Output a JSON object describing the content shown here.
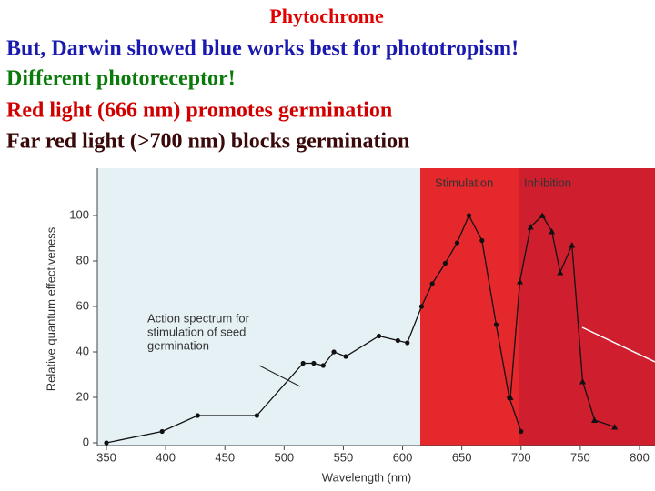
{
  "slide": {
    "lines": [
      {
        "text": "Phytochrome",
        "color": "#e00000"
      },
      {
        "text": "But, Darwin showed blue works best for phototropism!",
        "color": "#1a1ab0"
      },
      {
        "text": "Different photoreceptor!",
        "color": "#0a7a0a"
      },
      {
        "text": "Red light (666 nm) promotes germination",
        "color": "#d00000"
      },
      {
        "text": "Far red light (>700 nm) blocks germination",
        "color": "#3a0a0a"
      }
    ]
  },
  "chart_data": {
    "type": "line",
    "xlabel": "Wavelength (nm)",
    "ylabel": "Relative quantum effectiveness",
    "annotation": [
      "Action spectrum for",
      "stimulation of seed",
      "germination"
    ],
    "xlim": [
      350,
      800
    ],
    "xticks": [
      350,
      400,
      450,
      500,
      550,
      600,
      650,
      700,
      750,
      800
    ],
    "ylim": [
      0,
      120
    ],
    "yticks": [
      0,
      20,
      40,
      60,
      80,
      100
    ],
    "series": [
      {
        "name": "Stimulation",
        "color": "#111111",
        "marker": "circle",
        "x": [
          350,
          397,
          427,
          477,
          516,
          525,
          533,
          542,
          552,
          580,
          596,
          604,
          616,
          625,
          636,
          646,
          656,
          667,
          679,
          690,
          700
        ],
        "values": [
          0,
          5,
          12,
          12,
          35,
          35,
          34,
          40,
          38,
          47,
          45,
          44,
          60,
          70,
          79,
          88,
          100,
          89,
          52,
          20,
          5
        ]
      },
      {
        "name": "Inhibition",
        "color": "#111111",
        "marker": "triangle",
        "x": [
          691,
          699,
          708,
          718,
          726,
          733,
          743,
          752,
          762,
          779
        ],
        "values": [
          20,
          71,
          95,
          100,
          93,
          75,
          87,
          27,
          10,
          7
        ]
      }
    ]
  }
}
